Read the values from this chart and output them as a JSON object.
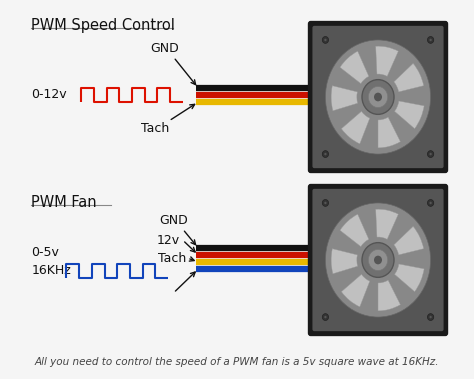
{
  "bg_color": "#f5f5f5",
  "title1": "PWM Speed Control",
  "title2": "PWM Fan",
  "caption": "All you need to control the speed of a PWM fan is a 5v square wave at 16KHz.",
  "wire_colors_top": [
    "#111111",
    "#cc1100",
    "#e8b800"
  ],
  "wire_colors_bot": [
    "#111111",
    "#cc1100",
    "#e8b800",
    "#1144bb"
  ],
  "pwm_color_top": "#dd1100",
  "pwm_color_bot": "#1144bb",
  "label_gnd_top": "GND",
  "label_tach_top": "Tach",
  "label_0_12v": "0-12v",
  "label_gnd_bot": "GND",
  "label_12v_bot": "12v",
  "label_tach_bot": "Tach",
  "label_0_5v": "0-5v",
  "label_16khz": "16KHz",
  "fan_frame_color": "#1a1a1a",
  "fan_blade_color": "#909090",
  "fan_hub_color": "#707070",
  "fan_bg_color": "#aaaaaa"
}
